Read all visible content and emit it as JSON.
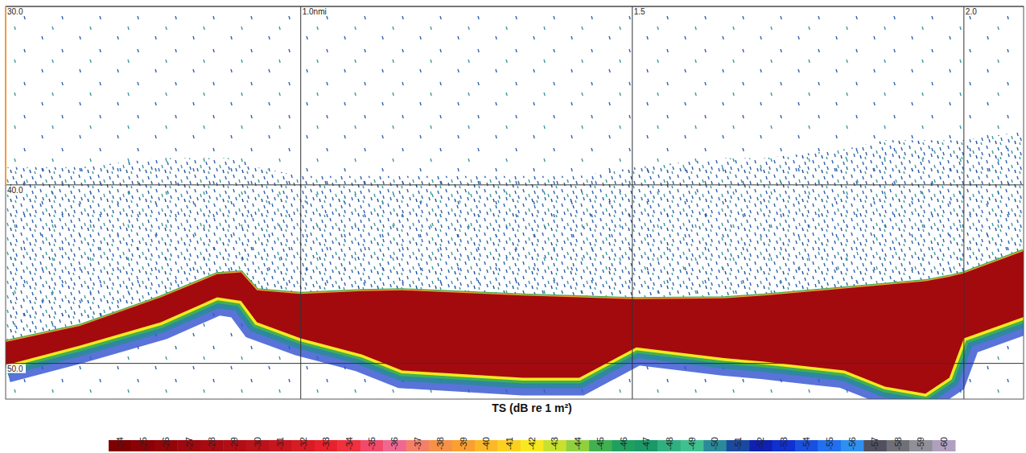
{
  "chart_data": {
    "type": "area",
    "x": [
      0.555,
      0.667,
      0.789,
      0.874,
      0.91,
      0.934,
      1.0,
      1.092,
      1.153,
      1.335,
      1.42,
      1.506,
      1.638,
      1.699,
      1.82,
      1.881,
      1.942,
      1.978,
      2.0,
      2.09
    ],
    "series": [
      {
        "color": "#2f62b0",
        "values": [
          39,
          39,
          38.5,
          38.5,
          38.5,
          39,
          39.5,
          39.5,
          39.5,
          39.5,
          39.5,
          39,
          38.5,
          38.5,
          38,
          37.5,
          37.5,
          37.5,
          37.5,
          37
        ]
      },
      {
        "color": "#a30a0e",
        "values": [
          48.8,
          47.9,
          46.3,
          45.0,
          44.9,
          45.9,
          46.1,
          45.95,
          45.9,
          46.2,
          46.3,
          46.4,
          46.35,
          46.2,
          45.8,
          45.6,
          45.4,
          45.15,
          44.95,
          43.7
        ],
        "lower": [
          50.1,
          49.0,
          47.7,
          46.3,
          46.5,
          47.7,
          48.6,
          49.5,
          50.4,
          50.8,
          50.8,
          49.1,
          49.7,
          49.9,
          50.4,
          51.3,
          51.7,
          50.8,
          48.6,
          47.4
        ]
      }
    ],
    "xlim": [
      0.555,
      2.09
    ],
    "xticks": [
      {
        "value": 1.0,
        "label": "1.0nmi"
      },
      {
        "value": 1.5,
        "label": "1.5"
      },
      {
        "value": 2.0,
        "label": "2.0"
      }
    ],
    "ylim": [
      30,
      52
    ],
    "yticks": [
      {
        "value": 30,
        "label": "30.0"
      },
      {
        "value": 40,
        "label": "40.0"
      },
      {
        "value": 50,
        "label": "50.0"
      }
    ],
    "grid": true,
    "colorbar": {
      "label": "TS (dB re 1 m²)",
      "range": [
        -24,
        -60
      ],
      "ticks": [
        -24,
        -25,
        -26,
        -27,
        -28,
        -29,
        -30,
        -31,
        -32,
        -33,
        -34,
        -35,
        -36,
        -37,
        -38,
        -39,
        -40,
        -41,
        -42,
        -43,
        -44,
        -45,
        -46,
        -47,
        -48,
        -49,
        -50,
        -51,
        -52,
        -53,
        -54,
        -55,
        -56,
        -57,
        -58,
        -59,
        -60
      ],
      "colors": [
        "#7f0000",
        "#8a0205",
        "#94050a",
        "#9e080e",
        "#a80b12",
        "#b20e16",
        "#bc121a",
        "#c8161e",
        "#d81c24",
        "#e8222c",
        "#f0303c",
        "#f24a6a",
        "#f06890",
        "#f4806a",
        "#f79048",
        "#f9a030",
        "#fbb828",
        "#fcd020",
        "#f8e820",
        "#c8e030",
        "#90d040",
        "#40b050",
        "#20a060",
        "#1a9868",
        "#30b080",
        "#40c090",
        "#2a8a9a",
        "#1a4aa0",
        "#1020b0",
        "#1030d0",
        "#1a50e0",
        "#2070f0",
        "#3090f0",
        "#505060",
        "#707078",
        "#909098",
        "#b0a0c0"
      ]
    }
  }
}
